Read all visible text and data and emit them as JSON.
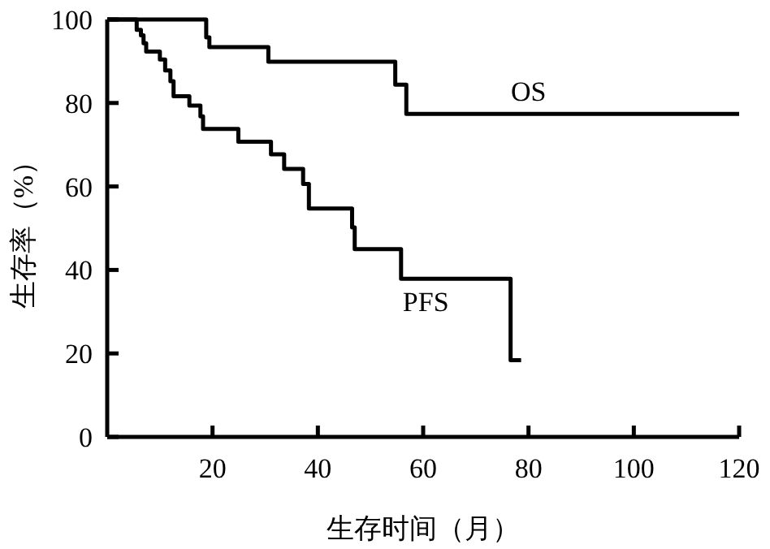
{
  "chart_data": {
    "type": "step",
    "xlabel": "生存时间（月）",
    "ylabel": "生存率（%）",
    "xlim": [
      0,
      120
    ],
    "ylim": [
      0,
      100
    ],
    "xticks": [
      20,
      40,
      60,
      80,
      100,
      120
    ],
    "yticks": [
      0,
      20,
      40,
      60,
      80,
      100
    ],
    "grid": false,
    "marker": "none",
    "line_style": "solid",
    "series": [
      {
        "name": "OS",
        "color": "#000000",
        "x": [
          0,
          18.8,
          19.4,
          30.6,
          54.7,
          56.8,
          120
        ],
        "values": [
          100,
          95.7,
          93.4,
          89.9,
          84.4,
          77.4,
          77.4
        ]
      },
      {
        "name": "PFS",
        "color": "#000000",
        "x": [
          0,
          5.6,
          6.4,
          6.9,
          7.4,
          10,
          11,
          12,
          12.6,
          15.6,
          17.7,
          18.2,
          24.9,
          31.1,
          33.6,
          37.2,
          38.3,
          46.5,
          47,
          55.8,
          76.6,
          78.6
        ],
        "values": [
          100,
          97.5,
          96.2,
          94.3,
          92.3,
          90.4,
          87.8,
          85.2,
          81.6,
          79.4,
          76.8,
          73.8,
          70.7,
          67.7,
          64.2,
          60.6,
          54.7,
          50.2,
          45,
          37.9,
          18.4,
          18.4
        ]
      }
    ]
  }
}
